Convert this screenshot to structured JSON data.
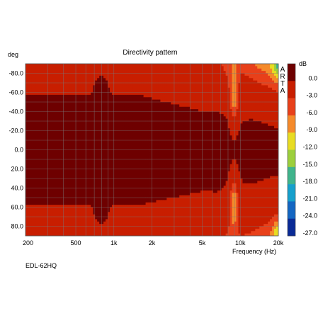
{
  "chart_data": {
    "type": "heatmap",
    "title": "Directivity pattern",
    "ylabel": "deg",
    "xlabel": "Frequency (Hz)",
    "x_scale": "log",
    "xlim": [
      200,
      20000
    ],
    "ylim": [
      -90,
      90
    ],
    "y_ticks": [
      "-80.0",
      "-60.0",
      "-40.0",
      "-20.0",
      "0.0",
      "20.0",
      "40.0",
      "60.0",
      "80.0"
    ],
    "x_ticks": [
      "200",
      "500",
      "1k",
      "2k",
      "5k",
      "10k",
      "20k"
    ],
    "colorbar": {
      "unit": "dB",
      "labels": [
        "0.0",
        "-3.0",
        "-6.0",
        "-9.0",
        "-12.0",
        "-15.0",
        "-18.0",
        "-21.0",
        "-24.0",
        "-27.0"
      ],
      "colors": [
        "#6e0000",
        "#c81e00",
        "#e8401a",
        "#f58a2a",
        "#e8dc22",
        "#9ccf3c",
        "#3fb48c",
        "#16a0cc",
        "#1466c2",
        "#0a2a96"
      ]
    },
    "watermark": "ARTA",
    "model_label": "EDL-62HQ",
    "grid": true
  }
}
